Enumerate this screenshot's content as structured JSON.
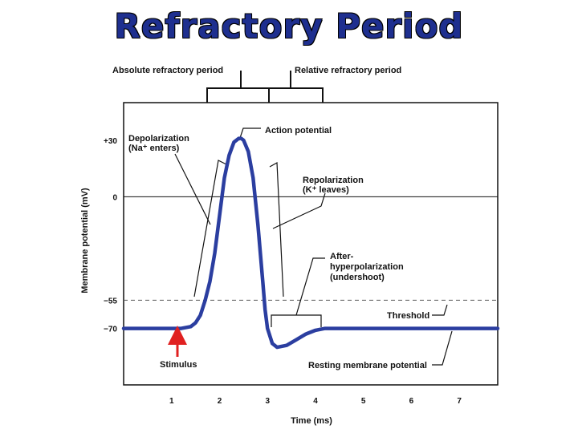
{
  "title": "Refractory Period",
  "chart_data": {
    "type": "line",
    "title": "Refractory Period",
    "xlabel": "Time (ms)",
    "ylabel": "Membrane potential (mV)",
    "xlim": [
      0,
      7.8
    ],
    "ylim": [
      -100,
      50
    ],
    "x_ticks": [
      1,
      2,
      3,
      4,
      5,
      6,
      7
    ],
    "y_ticks": [
      {
        "value": 30,
        "label": "+30"
      },
      {
        "value": 0,
        "label": "0"
      },
      {
        "value": -55,
        "label": "−55"
      },
      {
        "value": -70,
        "label": "−70"
      }
    ],
    "threshold_value": -55,
    "resting_value": -70,
    "series": [
      {
        "x": [
          0,
          1,
          1.2,
          1.4,
          1.5,
          1.6,
          1.7,
          1.8,
          1.9,
          2.0,
          2.1,
          2.2,
          2.3,
          2.4,
          2.45,
          2.5,
          2.6,
          2.7,
          2.8,
          2.9,
          2.95,
          3.0,
          3.1,
          3.2,
          3.4,
          3.6,
          3.8,
          4.0,
          4.2,
          4.5,
          5,
          6,
          7,
          7.8
        ],
        "y": [
          -70,
          -70,
          -70,
          -69,
          -67,
          -63,
          -55,
          -45,
          -30,
          -10,
          10,
          22,
          29,
          31,
          31,
          30,
          24,
          10,
          -15,
          -45,
          -60,
          -70,
          -78,
          -80,
          -79,
          -76,
          -73,
          -71,
          -70,
          -70,
          -70,
          -70,
          -70,
          -70
        ]
      }
    ],
    "annotations": {
      "absolute": "Absolute refractory period",
      "relative": "Relative refractory period",
      "action_potential": "Action potential",
      "depolarization_line1": "Depolarization",
      "depolarization_line2": "(Na⁺ enters)",
      "repolarization_line1": "Repolarization",
      "repolarization_line2": "(K⁺ leaves)",
      "after_line1": "After-",
      "after_line2": "hyperpolarization",
      "after_line3": "(undershoot)",
      "threshold": "Threshold",
      "stimulus": "Stimulus",
      "resting": "Resting membrane potential"
    },
    "colors": {
      "trace": "#2b3ea0",
      "stimulus_arrow": "#e02020",
      "plot_bg": "#ffffff"
    },
    "grid": false
  }
}
